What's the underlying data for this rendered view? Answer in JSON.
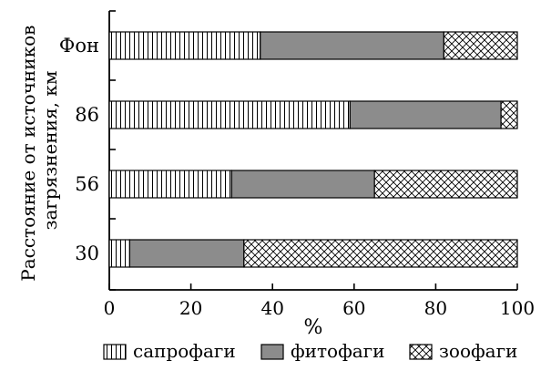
{
  "chart_data": {
    "type": "bar",
    "orientation": "horizontal",
    "stacked": true,
    "categories": [
      "Фон",
      "86",
      "56",
      "30"
    ],
    "series": [
      {
        "name": "сапрофаги",
        "values": [
          37,
          59,
          30,
          5
        ],
        "pattern": "vertical-lines"
      },
      {
        "name": "фитофаги",
        "values": [
          45,
          37,
          35,
          28
        ],
        "pattern": "solid-gray"
      },
      {
        "name": "зоофаги",
        "values": [
          18,
          4,
          35,
          67
        ],
        "pattern": "crosshatch"
      }
    ],
    "xlabel": "%",
    "ylabel": [
      "Расстояние от источников",
      "загрязнения, км"
    ],
    "xlim": [
      0,
      100
    ],
    "xticks": [
      0,
      20,
      40,
      60,
      80,
      100
    ],
    "grid": false,
    "legend_position": "bottom",
    "colors": {
      "fill_gray": "#8c8c8c",
      "stroke": "#000000",
      "background": "#ffffff"
    }
  }
}
